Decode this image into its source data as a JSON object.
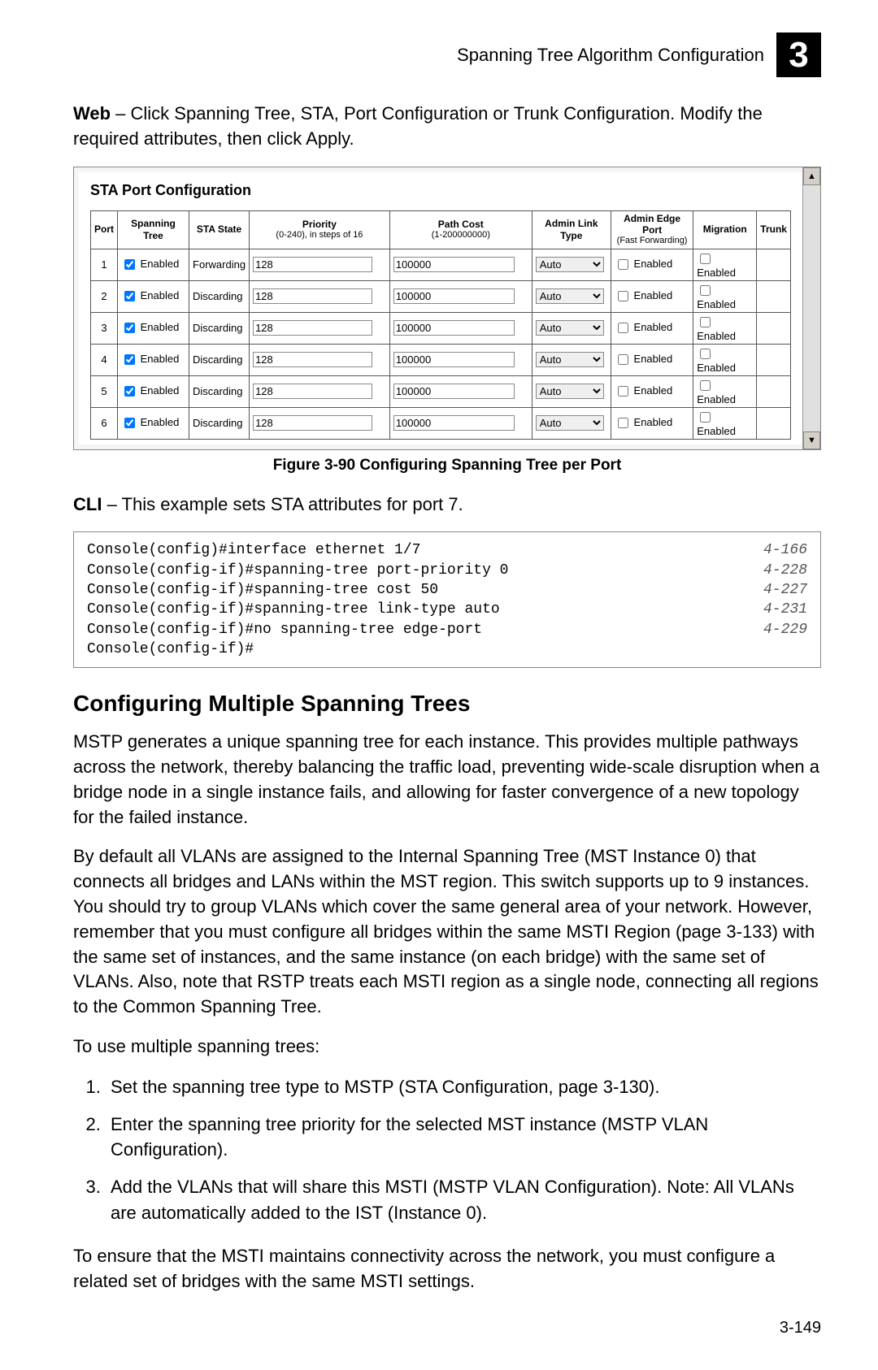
{
  "header": {
    "title": "Spanning Tree Algorithm Configuration",
    "chapter": "3"
  },
  "intro": {
    "prefix": "Web",
    "text": " – Click Spanning Tree, STA, Port Configuration or Trunk Configuration. Modify the required attributes, then click Apply."
  },
  "screenshot": {
    "title": "STA Port Configuration",
    "columns": {
      "port": "Port",
      "spanning_tree": "Spanning Tree",
      "sta_state": "STA State",
      "priority": "Priority",
      "priority_sub": "(0-240), in steps of 16",
      "path_cost": "Path Cost",
      "path_cost_sub": "(1-200000000)",
      "admin_link": "Admin Link Type",
      "admin_edge": "Admin Edge Port",
      "admin_edge_sub": "(Fast Forwarding)",
      "migration": "Migration",
      "trunk": "Trunk"
    },
    "rows": [
      {
        "port": "1",
        "spanning_checked": true,
        "spanning_label": "Enabled",
        "sta": "Forwarding",
        "priority": "128",
        "pathcost": "100000",
        "link": "Auto",
        "edge_checked": false,
        "edge_label": "Enabled",
        "mig_checked": false,
        "mig_label": "Enabled",
        "trunk": ""
      },
      {
        "port": "2",
        "spanning_checked": true,
        "spanning_label": "Enabled",
        "sta": "Discarding",
        "priority": "128",
        "pathcost": "100000",
        "link": "Auto",
        "edge_checked": false,
        "edge_label": "Enabled",
        "mig_checked": false,
        "mig_label": "Enabled",
        "trunk": ""
      },
      {
        "port": "3",
        "spanning_checked": true,
        "spanning_label": "Enabled",
        "sta": "Discarding",
        "priority": "128",
        "pathcost": "100000",
        "link": "Auto",
        "edge_checked": false,
        "edge_label": "Enabled",
        "mig_checked": false,
        "mig_label": "Enabled",
        "trunk": ""
      },
      {
        "port": "4",
        "spanning_checked": true,
        "spanning_label": "Enabled",
        "sta": "Discarding",
        "priority": "128",
        "pathcost": "100000",
        "link": "Auto",
        "edge_checked": false,
        "edge_label": "Enabled",
        "mig_checked": false,
        "mig_label": "Enabled",
        "trunk": ""
      },
      {
        "port": "5",
        "spanning_checked": true,
        "spanning_label": "Enabled",
        "sta": "Discarding",
        "priority": "128",
        "pathcost": "100000",
        "link": "Auto",
        "edge_checked": false,
        "edge_label": "Enabled",
        "mig_checked": false,
        "mig_label": "Enabled",
        "trunk": ""
      },
      {
        "port": "6",
        "spanning_checked": true,
        "spanning_label": "Enabled",
        "sta": "Discarding",
        "priority": "128",
        "pathcost": "100000",
        "link": "Auto",
        "edge_checked": false,
        "edge_label": "Enabled",
        "mig_checked": false,
        "mig_label": "Enabled",
        "trunk": ""
      }
    ]
  },
  "figure_caption": "Figure 3-90  Configuring Spanning Tree per Port",
  "cli_intro": {
    "prefix": "CLI",
    "text": " – This example sets STA attributes for port 7."
  },
  "cli_lines": [
    {
      "cmd": "Console(config)#interface ethernet 1/7",
      "ref": "4-166"
    },
    {
      "cmd": "Console(config-if)#spanning-tree port-priority 0",
      "ref": "4-228"
    },
    {
      "cmd": "Console(config-if)#spanning-tree cost 50",
      "ref": "4-227"
    },
    {
      "cmd": "Console(config-if)#spanning-tree link-type auto",
      "ref": "4-231"
    },
    {
      "cmd": "Console(config-if)#no spanning-tree edge-port",
      "ref": "4-229"
    },
    {
      "cmd": "Console(config-if)#",
      "ref": ""
    }
  ],
  "section_heading": "Configuring Multiple Spanning Trees",
  "para1": "MSTP generates a unique spanning tree for each instance. This provides multiple pathways across the network, thereby balancing the traffic load, preventing wide-scale disruption when a bridge node in a single instance fails, and allowing for faster convergence of a new topology for the failed instance.",
  "para2": "By default all VLANs are assigned to the Internal Spanning Tree (MST Instance 0) that connects all bridges and LANs within the MST region. This switch supports up to 9 instances. You should try to group VLANs which cover the same general area of your network. However, remember that you must configure all bridges within the same MSTI Region (page 3-133) with the same set of instances, and the same instance (on each bridge) with the same set of VLANs. Also, note that RSTP treats each MSTI region as a single node, connecting all regions to the Common Spanning Tree.",
  "para3": "To use multiple spanning trees:",
  "steps": [
    "Set the spanning tree type to MSTP (STA Configuration, page 3-130).",
    "Enter the spanning tree priority for the selected MST instance (MSTP VLAN Configuration).",
    "Add the VLANs that will share this MSTI (MSTP VLAN Configuration). Note: All VLANs are automatically added to the IST (Instance 0)."
  ],
  "para4": "To ensure that the MSTI maintains connectivity across the network, you must configure a related set of bridges with the same MSTI settings.",
  "page_number": "3-149"
}
